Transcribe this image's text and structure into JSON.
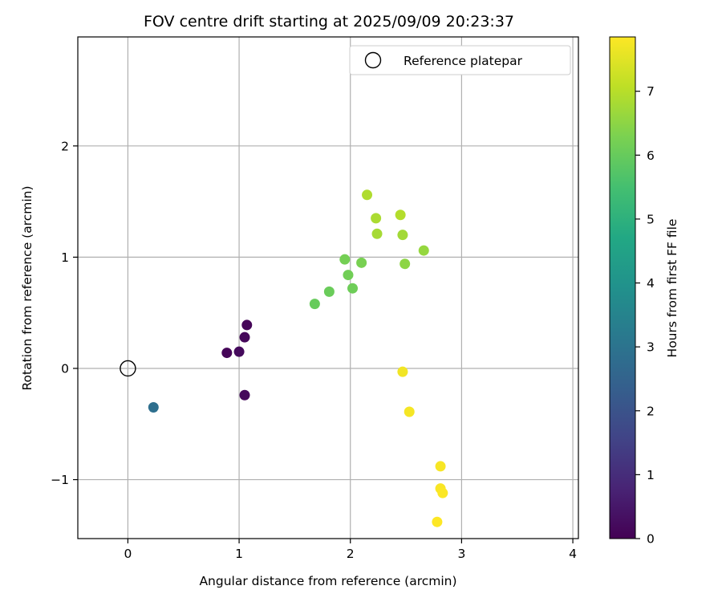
{
  "chart_data": {
    "type": "scatter",
    "title": "FOV centre drift starting at 2025/09/09 20:23:37",
    "xlabel": "Angular distance from reference (arcmin)",
    "ylabel": "Rotation from reference (arcmin)",
    "xlim": [
      -0.45,
      4.05
    ],
    "ylim": [
      -1.53,
      2.98
    ],
    "xticks": [
      0,
      1,
      2,
      3,
      4
    ],
    "yticks": [
      -1,
      0,
      1,
      2
    ],
    "grid": true,
    "legend": {
      "position": "top-right",
      "entries": [
        "Reference platepar"
      ]
    },
    "colorbar": {
      "label": "Hours from first FF file",
      "range": [
        0,
        7.85
      ],
      "ticks": [
        0,
        1,
        2,
        3,
        4,
        5,
        6,
        7
      ],
      "colormap": "viridis"
    },
    "reference_point": {
      "x": 0,
      "y": 0,
      "label": "Reference platepar"
    },
    "points": [
      {
        "x": 0.89,
        "y": 0.14,
        "hours": 0.1
      },
      {
        "x": 1.0,
        "y": 0.15,
        "hours": 0.2
      },
      {
        "x": 1.05,
        "y": 0.28,
        "hours": 0.15
      },
      {
        "x": 1.07,
        "y": 0.39,
        "hours": 0.1
      },
      {
        "x": 1.05,
        "y": -0.24,
        "hours": 0.2
      },
      {
        "x": 0.23,
        "y": -0.35,
        "hours": 2.85
      },
      {
        "x": 1.68,
        "y": 0.58,
        "hours": 6.0
      },
      {
        "x": 1.81,
        "y": 0.69,
        "hours": 6.05
      },
      {
        "x": 1.95,
        "y": 0.98,
        "hours": 6.2
      },
      {
        "x": 1.98,
        "y": 0.84,
        "hours": 6.15
      },
      {
        "x": 2.02,
        "y": 0.72,
        "hours": 6.1
      },
      {
        "x": 2.1,
        "y": 0.95,
        "hours": 6.25
      },
      {
        "x": 2.15,
        "y": 1.56,
        "hours": 6.9
      },
      {
        "x": 2.23,
        "y": 1.35,
        "hours": 6.85
      },
      {
        "x": 2.24,
        "y": 1.21,
        "hours": 6.8
      },
      {
        "x": 2.45,
        "y": 1.38,
        "hours": 6.95
      },
      {
        "x": 2.47,
        "y": 1.2,
        "hours": 6.75
      },
      {
        "x": 2.49,
        "y": 0.94,
        "hours": 6.5
      },
      {
        "x": 2.66,
        "y": 1.06,
        "hours": 6.6
      },
      {
        "x": 2.47,
        "y": -0.03,
        "hours": 7.7
      },
      {
        "x": 2.53,
        "y": -0.39,
        "hours": 7.75
      },
      {
        "x": 2.81,
        "y": -0.88,
        "hours": 7.78
      },
      {
        "x": 2.81,
        "y": -1.08,
        "hours": 7.8
      },
      {
        "x": 2.83,
        "y": -1.12,
        "hours": 7.82
      },
      {
        "x": 2.78,
        "y": -1.38,
        "hours": 7.85
      }
    ]
  }
}
